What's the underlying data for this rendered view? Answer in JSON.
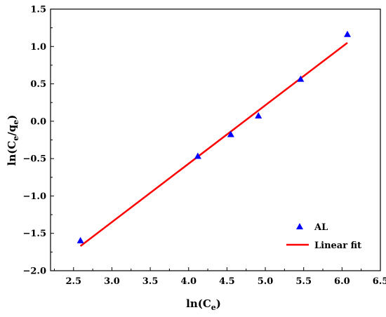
{
  "chart_data": {
    "type": "scatter",
    "title": "",
    "xlabel": {
      "main": "ln(C",
      "sub": "e",
      "tail": ")"
    },
    "ylabel": {
      "p1": "ln(C",
      "s1": "e",
      "p2": "/q",
      "s2": "e",
      "p3": ")"
    },
    "xlim": [
      2.2,
      6.5
    ],
    "ylim": [
      -2.0,
      1.5
    ],
    "xticks": [
      2.5,
      3.0,
      3.5,
      4.0,
      4.5,
      5.0,
      5.5,
      6.0,
      6.5
    ],
    "xtick_labels": [
      "2.5",
      "3.0",
      "3.5",
      "4.0",
      "4.5",
      "5.0",
      "5.5",
      "6.0",
      "6.5"
    ],
    "yticks": [
      -2.0,
      -1.5,
      -1.0,
      -0.5,
      0.0,
      0.5,
      1.0,
      1.5
    ],
    "ytick_labels": [
      "−2.0",
      "−1.5",
      "−1.0",
      "−0.5",
      "0.0",
      "0.5",
      "1.0",
      "1.5"
    ],
    "grid": false,
    "legend_position": "bottom-right",
    "series": [
      {
        "name": "AL",
        "kind": "scatter",
        "marker": "triangle",
        "color": "#0000ff",
        "x": [
          2.59,
          4.12,
          4.55,
          4.91,
          5.46,
          6.07
        ],
        "y": [
          -1.6,
          -0.47,
          -0.18,
          0.07,
          0.56,
          1.16
        ]
      },
      {
        "name": "Linear fit",
        "kind": "line",
        "color": "#ff0000",
        "x": [
          2.59,
          6.07
        ],
        "y": [
          -1.67,
          1.05
        ]
      }
    ]
  }
}
